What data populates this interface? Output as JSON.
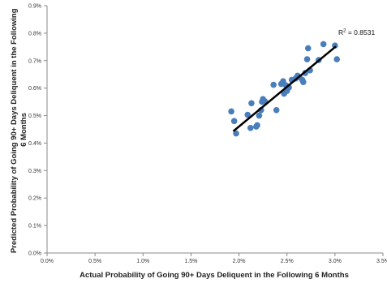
{
  "chart_data": {
    "type": "scatter",
    "xlabel": "Actual Probability of Going 90+ Days Deliquent in the Following 6 Months",
    "ylabel_lines": [
      "Predicted Probability of Going 90+ Days Deliquent in the Following",
      "6 Months"
    ],
    "xlim": [
      0,
      0.035
    ],
    "ylim": [
      0,
      0.009
    ],
    "x_ticks": [
      0,
      0.005,
      0.01,
      0.015,
      0.02,
      0.025,
      0.03,
      0.035
    ],
    "x_tick_labels": [
      "0.0%",
      "0.5%",
      "1.0%",
      "1.5%",
      "2.0%",
      "2.5%",
      "3.0%",
      "3.5%"
    ],
    "y_ticks": [
      0,
      0.001,
      0.002,
      0.003,
      0.004,
      0.005,
      0.006,
      0.007,
      0.008,
      0.009
    ],
    "y_tick_labels": [
      "0.0%",
      "0.1%",
      "0.2%",
      "0.3%",
      "0.4%",
      "0.5%",
      "0.6%",
      "0.7%",
      "0.8%",
      "0.9%"
    ],
    "grid": false,
    "point_color": "#4a7ebb",
    "trendline_color": "#000000",
    "trendline": {
      "x": [
        0.0194,
        0.0301
      ],
      "y": [
        0.00443,
        0.00752
      ]
    },
    "annotation": {
      "base": "R",
      "sup": "2",
      "rest": " = 0.8531"
    },
    "points": [
      [
        0.0192,
        0.00515
      ],
      [
        0.0195,
        0.0048
      ],
      [
        0.0197,
        0.00435
      ],
      [
        0.0209,
        0.00503
      ],
      [
        0.0212,
        0.00455
      ],
      [
        0.0213,
        0.00545
      ],
      [
        0.0218,
        0.0046
      ],
      [
        0.0219,
        0.00465
      ],
      [
        0.0221,
        0.005
      ],
      [
        0.0223,
        0.0052
      ],
      [
        0.0224,
        0.0055
      ],
      [
        0.0225,
        0.0056
      ],
      [
        0.0227,
        0.00552
      ],
      [
        0.0236,
        0.00612
      ],
      [
        0.0239,
        0.0052
      ],
      [
        0.0244,
        0.00615
      ],
      [
        0.0246,
        0.00625
      ],
      [
        0.0247,
        0.0058
      ],
      [
        0.0249,
        0.0061
      ],
      [
        0.025,
        0.0059
      ],
      [
        0.0252,
        0.00602
      ],
      [
        0.0255,
        0.0063
      ],
      [
        0.0259,
        0.00635
      ],
      [
        0.0261,
        0.00645
      ],
      [
        0.0263,
        0.0064
      ],
      [
        0.0266,
        0.0063
      ],
      [
        0.0267,
        0.00622
      ],
      [
        0.0269,
        0.00655
      ],
      [
        0.0271,
        0.00705
      ],
      [
        0.0272,
        0.00745
      ],
      [
        0.0274,
        0.00665
      ],
      [
        0.0283,
        0.00702
      ],
      [
        0.0288,
        0.0076
      ],
      [
        0.03,
        0.00755
      ],
      [
        0.0302,
        0.00705
      ]
    ]
  }
}
